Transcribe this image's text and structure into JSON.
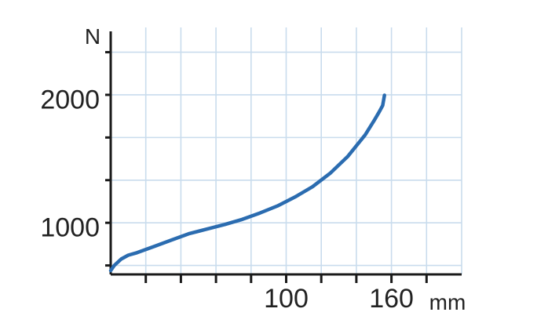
{
  "chart_data": {
    "type": "line",
    "title": "",
    "xlabel": "mm",
    "ylabel": "N",
    "xlim": [
      0,
      200
    ],
    "ylim": [
      630,
      2560
    ],
    "x_tick_labels": [
      {
        "value": 100,
        "label": "100"
      },
      {
        "value": 160,
        "label": "160"
      }
    ],
    "y_tick_labels": [
      {
        "value": 1000,
        "label": "1000"
      },
      {
        "value": 2000,
        "label": "2000"
      }
    ],
    "grid": true,
    "series": [
      {
        "color": "#2b6cb0",
        "x": [
          0,
          2,
          6,
          10,
          15,
          25,
          35,
          45,
          55,
          65,
          75,
          85,
          95,
          105,
          115,
          125,
          135,
          145,
          150,
          153,
          155,
          156
        ],
        "y": [
          660,
          700,
          750,
          780,
          800,
          850,
          900,
          950,
          985,
          1020,
          1060,
          1110,
          1165,
          1235,
          1315,
          1420,
          1550,
          1720,
          1830,
          1900,
          1950,
          2030
        ]
      }
    ]
  }
}
